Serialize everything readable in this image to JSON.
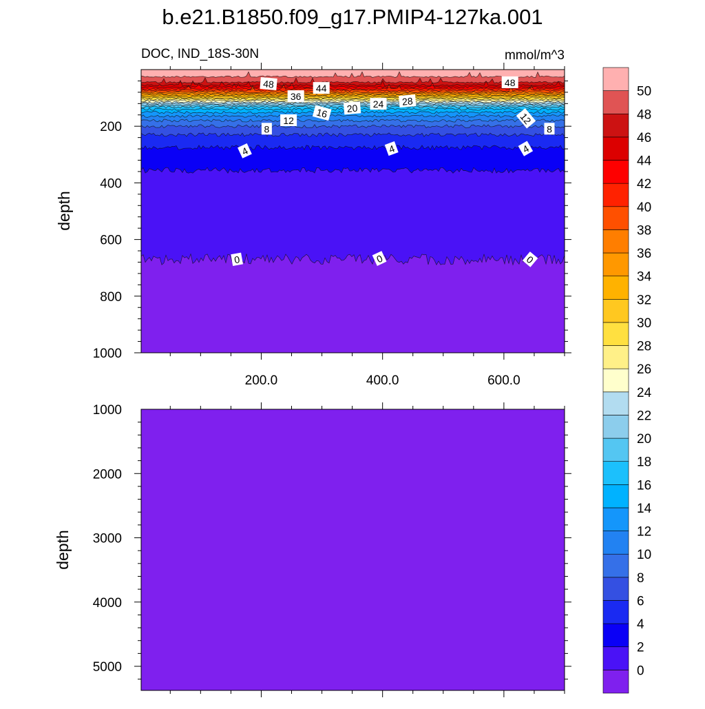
{
  "chart_data": {
    "type": "heatmap",
    "title": "b.e21.B1850.f09_g17.PMIP4-127ka.001",
    "subtitle_left": "DOC, IND_18S-30N",
    "subtitle_right": "mmol/m^3",
    "colorbar": {
      "levels": [
        0,
        2,
        4,
        6,
        8,
        10,
        12,
        14,
        16,
        18,
        20,
        22,
        24,
        26,
        28,
        30,
        32,
        34,
        36,
        38,
        40,
        42,
        44,
        46,
        48,
        50
      ],
      "colors": [
        "#7f20ee",
        "#4a12f6",
        "#0a00f6",
        "#1a2af2",
        "#3450e2",
        "#3570e8",
        "#2282f2",
        "#1496fb",
        "#00b2ff",
        "#1cc0fc",
        "#54c6f2",
        "#8ccdec",
        "#b2dcf0",
        "#ffffcc",
        "#fff088",
        "#ffe040",
        "#ffc820",
        "#ffb200",
        "#ff9800",
        "#ff7e00",
        "#ff5000",
        "#ff2200",
        "#fe0000",
        "#dc0000",
        "#cc1212",
        "#e05454",
        "#ffb0b0"
      ]
    },
    "panels": [
      {
        "ylabel": "depth",
        "xlim": [
          2,
          700
        ],
        "ylim": [
          0,
          1000
        ],
        "xticks": [
          "200.0",
          "400.0",
          "600.0"
        ],
        "xtick_values": [
          200,
          400,
          600
        ],
        "yticks": [
          "200",
          "400",
          "600",
          "800",
          "1000"
        ],
        "ytick_values": [
          200,
          400,
          600,
          800,
          1000
        ],
        "contour_depths": {
          "0": 670,
          "2": 356,
          "4": 275,
          "6": 230,
          "8": 200,
          "10": 180,
          "12": 164,
          "14": 151,
          "16": 140,
          "18": 132,
          "20": 126,
          "22": 120,
          "24": 115,
          "26": 110,
          "28": 105,
          "30": 100,
          "32": 95,
          "34": 90,
          "36": 85,
          "38": 80,
          "40": 74,
          "42": 68,
          "44": 62,
          "46": 55,
          "48": 45,
          "50": 25
        },
        "contour_labels": [
          {
            "text": "48",
            "x": 212,
            "depth": 51,
            "rot": 5
          },
          {
            "text": "44",
            "x": 299,
            "depth": 66,
            "rot": 0
          },
          {
            "text": "36",
            "x": 257,
            "depth": 95,
            "rot": 0
          },
          {
            "text": "16",
            "x": 300,
            "depth": 154,
            "rot": 15
          },
          {
            "text": "20",
            "x": 350,
            "depth": 137,
            "rot": -5
          },
          {
            "text": "24",
            "x": 393,
            "depth": 122,
            "rot": 0
          },
          {
            "text": "28",
            "x": 441,
            "depth": 112,
            "rot": -5
          },
          {
            "text": "12",
            "x": 245,
            "depth": 180,
            "rot": 0
          },
          {
            "text": "8",
            "x": 209,
            "depth": 210,
            "rot": 0
          },
          {
            "text": "4",
            "x": 173,
            "depth": 288,
            "rot": -25
          },
          {
            "text": "4",
            "x": 415,
            "depth": 280,
            "rot": -20
          },
          {
            "text": "48",
            "x": 610,
            "depth": 46,
            "rot": 0
          },
          {
            "text": "12",
            "x": 636,
            "depth": 173,
            "rot": 50
          },
          {
            "text": "8",
            "x": 675,
            "depth": 210,
            "rot": 0
          },
          {
            "text": "4",
            "x": 636,
            "depth": 280,
            "rot": -30
          },
          {
            "text": "0",
            "x": 160,
            "depth": 671,
            "rot": -10
          },
          {
            "text": "0",
            "x": 395,
            "depth": 668,
            "rot": -25
          },
          {
            "text": "0",
            "x": 643,
            "depth": 671,
            "rot": 40
          }
        ]
      },
      {
        "ylabel": "depth",
        "xlim": [
          2,
          700
        ],
        "ylim": [
          1000,
          5375
        ],
        "yticks": [
          "1000",
          "2000",
          "3000",
          "4000",
          "5000"
        ],
        "ytick_values": [
          1000,
          2000,
          3000,
          4000,
          5000
        ],
        "fill_band": "below 0"
      }
    ]
  }
}
